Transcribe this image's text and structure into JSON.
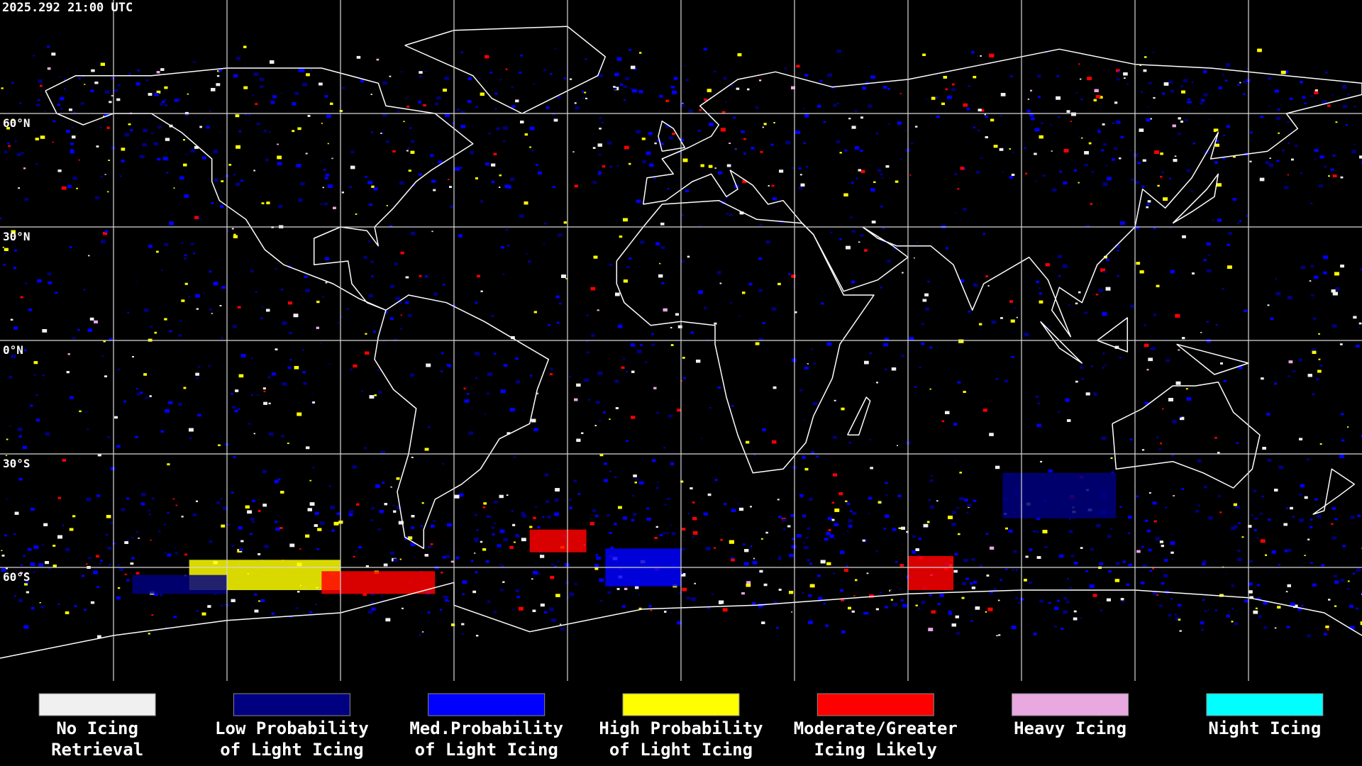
{
  "header": {
    "timestamp": "2025.292 21:00 UTC"
  },
  "map": {
    "latitude_labels": [
      "60°N",
      "30°N",
      "0°N",
      "30°S",
      "60°S"
    ]
  },
  "legend": {
    "items": [
      {
        "lines": [
          "No Icing",
          "Retrieval"
        ],
        "color": "#f0f0f0"
      },
      {
        "lines": [
          "Low Probability",
          "of Light Icing"
        ],
        "color": "#000080"
      },
      {
        "lines": [
          "Med.Probability",
          "of Light Icing"
        ],
        "color": "#0000ff"
      },
      {
        "lines": [
          "High Probability",
          "of Light Icing"
        ],
        "color": "#ffff00"
      },
      {
        "lines": [
          "Moderate/Greater",
          "Icing Likely"
        ],
        "color": "#ff0000"
      },
      {
        "lines": [
          "Heavy Icing"
        ],
        "color": "#e8a8e0"
      },
      {
        "lines": [
          "Night Icing"
        ],
        "color": "#00ffff"
      }
    ]
  }
}
